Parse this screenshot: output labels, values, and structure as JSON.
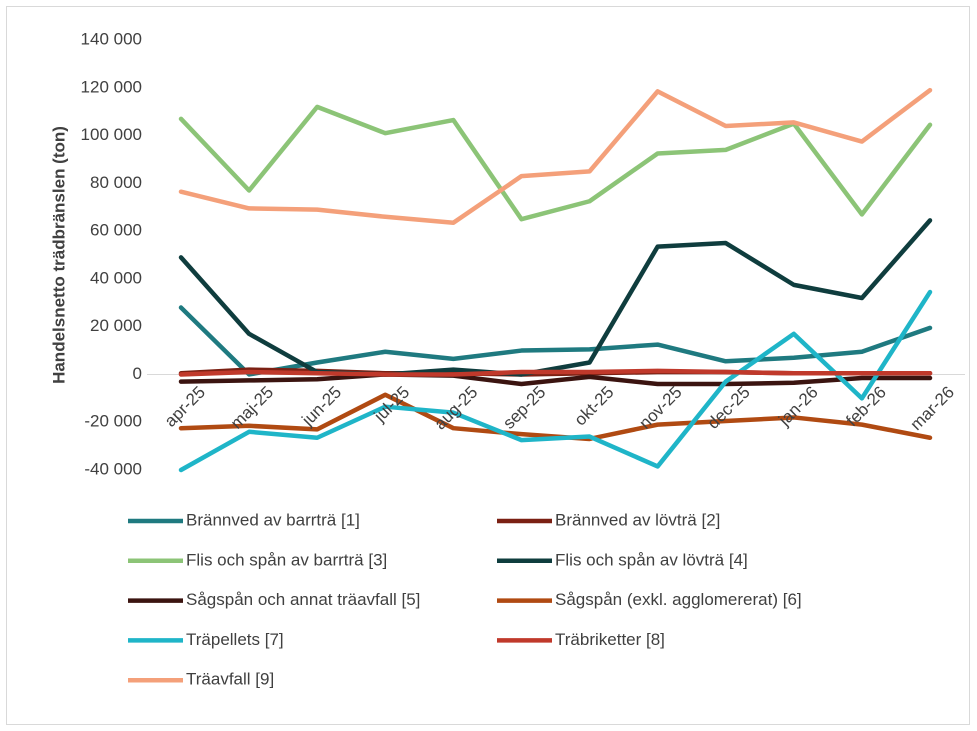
{
  "chart_data": {
    "type": "line",
    "y_label": "Handelsnetto trädbränslen (ton)",
    "categories": [
      "apr-25",
      "maj-25",
      "jun-25",
      "jul-25",
      "aug-25",
      "sep-25",
      "okt-25",
      "nov-25",
      "dec-25",
      "jan-26",
      "feb-26",
      "mar-26"
    ],
    "series": [
      {
        "name": "Brännved av barrträ [1]",
        "color": "#1f7a80",
        "values": [
          28000,
          0,
          5000,
          9500,
          6500,
          10000,
          10500,
          12500,
          5500,
          7000,
          9500,
          19500
        ]
      },
      {
        "name": "Brännved av lövträ [2]",
        "color": "#7b2013",
        "values": [
          500,
          2000,
          1500,
          500,
          500,
          0,
          500,
          1000,
          1000,
          500,
          500,
          500
        ]
      },
      {
        "name": "Flis och spån av barrträ [3]",
        "color": "#8cc477",
        "values": [
          107000,
          77000,
          112000,
          101000,
          106500,
          65000,
          72500,
          92500,
          94000,
          105000,
          67000,
          104500
        ]
      },
      {
        "name": "Flis och spån av lövträ [4]",
        "color": "#0f3d3e",
        "values": [
          49000,
          17000,
          1000,
          0,
          2000,
          0,
          5000,
          53500,
          55000,
          37500,
          32000,
          64500
        ]
      },
      {
        "name": "Sågspån och annat träavfall [5]",
        "color": "#3b1410",
        "values": [
          -3000,
          -2500,
          -2000,
          0,
          -500,
          -4000,
          -1000,
          -4000,
          -4000,
          -3500,
          -1500,
          -1500
        ]
      },
      {
        "name": "Sågspån (exkl. agglomererat) [6]",
        "color": "#b04a12",
        "values": [
          -22500,
          -21500,
          -23000,
          -8500,
          -22500,
          -25000,
          -27000,
          -21000,
          -19500,
          -18000,
          -21000,
          -26500
        ]
      },
      {
        "name": "Träpellets [7]",
        "color": "#1fb5c8",
        "values": [
          -40000,
          -24000,
          -26500,
          -13500,
          -16000,
          -27500,
          -26000,
          -38500,
          -3000,
          17000,
          -10000,
          34500
        ]
      },
      {
        "name": "Träbriketter [8]",
        "color": "#c0392b",
        "values": [
          0,
          1000,
          500,
          0,
          0,
          1000,
          1000,
          1500,
          1000,
          500,
          500,
          500
        ]
      },
      {
        "name": "Träavfall [9]",
        "color": "#f4a07a",
        "values": [
          76500,
          69500,
          69000,
          66000,
          63500,
          83000,
          85000,
          118500,
          104000,
          105500,
          97500,
          119000
        ]
      }
    ],
    "ylim": [
      -40000,
      140000
    ],
    "yticks": [
      {
        "value": -40000,
        "label": "-40 000"
      },
      {
        "value": -20000,
        "label": "-20 000"
      },
      0,
      {
        "value": 20000,
        "label": "20 000"
      },
      {
        "value": 40000,
        "label": "40 000"
      },
      {
        "value": 60000,
        "label": "60 000"
      },
      {
        "value": 80000,
        "label": "80 000"
      },
      {
        "value": 100000,
        "label": "100 000"
      },
      {
        "value": 120000,
        "label": "120 000"
      },
      {
        "value": 140000,
        "label": "140 000"
      }
    ]
  }
}
